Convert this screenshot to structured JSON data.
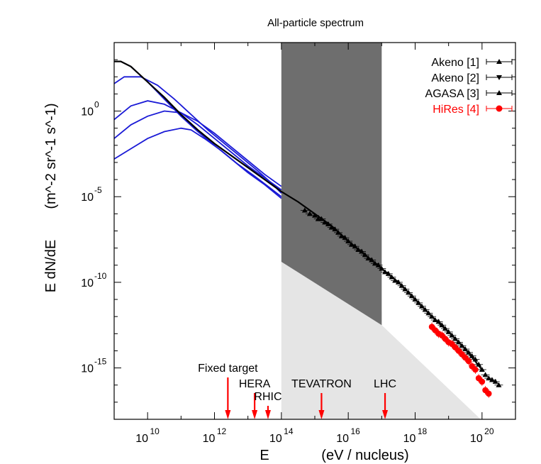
{
  "chart_data": {
    "type": "line",
    "title": "All-particle spectrum",
    "xlabel": {
      "main": "E",
      "units": "(eV / nucleus)"
    },
    "ylabel": {
      "main": "E dN/dE",
      "units_base": "m",
      "units_text": "(m^-2 sr^-1 s^-1)"
    },
    "xscale": "log",
    "yscale": "log",
    "xlim_log10": [
      9.0,
      21.0
    ],
    "ylim_log10": [
      -18.0,
      4.0
    ],
    "x_ticks": [
      {
        "exp": 10,
        "label": "10",
        "sup": "10"
      },
      {
        "exp": 12,
        "label": "10",
        "sup": "12"
      },
      {
        "exp": 14,
        "label": "10",
        "sup": "14"
      },
      {
        "exp": 16,
        "label": "10",
        "sup": "16"
      },
      {
        "exp": 18,
        "label": "10",
        "sup": "18"
      },
      {
        "exp": 20,
        "label": "10",
        "sup": "20"
      }
    ],
    "y_ticks": [
      {
        "exp": 0,
        "label": "10",
        "sup": "0"
      },
      {
        "exp": -5,
        "label": "10",
        "sup": "-5"
      },
      {
        "exp": -10,
        "label": "10",
        "sup": "-10"
      },
      {
        "exp": -15,
        "label": "10",
        "sup": "-15"
      }
    ],
    "total_curve": {
      "color": "#000000",
      "points_log10": [
        [
          9.0,
          2.9
        ],
        [
          9.2,
          2.9
        ],
        [
          9.5,
          2.6
        ],
        [
          10.0,
          1.7
        ],
        [
          10.5,
          0.8
        ],
        [
          11,
          -0.2
        ],
        [
          11.5,
          -1.1
        ],
        [
          12,
          -1.9
        ],
        [
          12.5,
          -2.6
        ],
        [
          13,
          -3.3
        ],
        [
          13.5,
          -4.0
        ],
        [
          14,
          -4.7
        ],
        [
          14.5,
          -5.3
        ],
        [
          15,
          -6.0
        ],
        [
          15.5,
          -6.7
        ],
        [
          16,
          -7.6
        ],
        [
          16.5,
          -8.4
        ],
        [
          17,
          -9.2
        ],
        [
          17.5,
          -10.0
        ],
        [
          18,
          -11.0
        ],
        [
          18.5,
          -12.0
        ],
        [
          19,
          -12.9
        ],
        [
          19.5,
          -13.9
        ],
        [
          20,
          -15.1
        ]
      ]
    },
    "component_curves": {
      "color": "#1a1ad6",
      "series": [
        {
          "points_log10": [
            [
              9.0,
              2.9
            ],
            [
              9.2,
              2.9
            ],
            [
              9.5,
              2.6
            ],
            [
              10,
              1.7
            ],
            [
              10.5,
              0.7
            ],
            [
              11,
              -0.3
            ],
            [
              11.5,
              -1.2
            ],
            [
              12,
              -2.0
            ],
            [
              12.5,
              -2.8
            ],
            [
              13,
              -3.6
            ],
            [
              13.5,
              -4.3
            ],
            [
              14,
              -5.1
            ]
          ]
        },
        {
          "points_log10": [
            [
              9.0,
              1.6
            ],
            [
              9.3,
              2.0
            ],
            [
              9.8,
              2.0
            ],
            [
              10.3,
              1.5
            ],
            [
              10.8,
              0.7
            ],
            [
              11.3,
              -0.2
            ],
            [
              11.8,
              -1.1
            ],
            [
              12.3,
              -1.9
            ],
            [
              12.8,
              -2.7
            ],
            [
              13.3,
              -3.5
            ],
            [
              13.7,
              -4.2
            ],
            [
              14,
              -4.8
            ]
          ]
        },
        {
          "points_log10": [
            [
              9.0,
              -0.5
            ],
            [
              9.5,
              0.3
            ],
            [
              10,
              0.6
            ],
            [
              10.5,
              0.4
            ],
            [
              11,
              -0.1
            ],
            [
              11.5,
              -0.8
            ],
            [
              12,
              -1.6
            ],
            [
              12.5,
              -2.4
            ],
            [
              13,
              -3.2
            ],
            [
              13.5,
              -3.9
            ],
            [
              14,
              -4.6
            ]
          ]
        },
        {
          "points_log10": [
            [
              9.0,
              -1.6
            ],
            [
              9.5,
              -0.8
            ],
            [
              10,
              -0.3
            ],
            [
              10.5,
              0.0
            ],
            [
              11,
              -0.1
            ],
            [
              11.5,
              -0.6
            ],
            [
              12,
              -1.3
            ],
            [
              12.5,
              -2.1
            ],
            [
              13,
              -2.9
            ],
            [
              13.5,
              -3.7
            ],
            [
              14,
              -4.4
            ]
          ]
        },
        {
          "points_log10": [
            [
              9.0,
              -2.8
            ],
            [
              9.5,
              -2.2
            ],
            [
              10,
              -1.6
            ],
            [
              10.5,
              -1.2
            ],
            [
              11,
              -1.0
            ],
            [
              11.3,
              -1.1
            ],
            [
              11.7,
              -1.6
            ],
            [
              12.2,
              -2.3
            ],
            [
              12.7,
              -3.1
            ],
            [
              13.2,
              -3.8
            ],
            [
              13.6,
              -4.4
            ],
            [
              14,
              -5.0
            ]
          ]
        }
      ]
    },
    "shaded_regions": [
      {
        "name": "dark-band",
        "color": "#6e6e6e",
        "x_log10": [
          14,
          17
        ],
        "top_log10": 4.0,
        "bottom_left_log10": -8.8,
        "bottom_right_log10": -12.5
      },
      {
        "name": "light-region",
        "color": "#e5e5e5",
        "polygon_log10": [
          [
            14,
            -8.8
          ],
          [
            17,
            -12.5
          ],
          [
            19.96,
            -18
          ],
          [
            14,
            -18
          ]
        ]
      }
    ],
    "legend": {
      "position": "top-right",
      "entries": [
        {
          "label": "Akeno [1]",
          "color": "#000000",
          "marker": "triangle-up"
        },
        {
          "label": "Akeno [2]",
          "color": "#000000",
          "marker": "triangle-down"
        },
        {
          "label": "AGASA [3]",
          "color": "#000000",
          "marker": "triangle-up"
        },
        {
          "label": "HiRes [4]",
          "color": "#ff0000",
          "marker": "circle"
        }
      ]
    },
    "data_points": {
      "black_triangles_log10": [
        [
          14.7,
          -5.8
        ],
        [
          14.85,
          -6.0
        ],
        [
          15.0,
          -6.1
        ],
        [
          15.1,
          -6.3
        ],
        [
          15.2,
          -6.3
        ],
        [
          15.3,
          -6.5
        ],
        [
          15.4,
          -6.6
        ],
        [
          15.5,
          -6.8
        ],
        [
          15.6,
          -6.9
        ],
        [
          15.7,
          -7.1
        ],
        [
          15.8,
          -7.3
        ],
        [
          15.9,
          -7.4
        ],
        [
          16.0,
          -7.6
        ],
        [
          16.1,
          -7.8
        ],
        [
          16.2,
          -7.9
        ],
        [
          16.3,
          -8.1
        ],
        [
          16.4,
          -8.2
        ],
        [
          16.5,
          -8.4
        ],
        [
          16.6,
          -8.6
        ],
        [
          16.7,
          -8.7
        ],
        [
          16.8,
          -8.9
        ],
        [
          16.9,
          -9.0
        ],
        [
          17.0,
          -9.2
        ],
        [
          17.1,
          -9.4
        ],
        [
          17.2,
          -9.5
        ],
        [
          17.3,
          -9.7
        ],
        [
          17.4,
          -9.9
        ],
        [
          17.5,
          -10.0
        ],
        [
          17.6,
          -10.2
        ],
        [
          17.7,
          -10.4
        ],
        [
          17.8,
          -10.6
        ],
        [
          17.9,
          -10.8
        ],
        [
          18.0,
          -11.0
        ],
        [
          18.1,
          -11.2
        ],
        [
          18.2,
          -11.4
        ],
        [
          18.3,
          -11.6
        ],
        [
          18.4,
          -11.8
        ],
        [
          18.5,
          -12.0
        ],
        [
          18.6,
          -12.2
        ],
        [
          18.7,
          -12.3
        ],
        [
          18.8,
          -12.5
        ],
        [
          18.9,
          -12.7
        ],
        [
          19.0,
          -12.9
        ],
        [
          19.1,
          -13.1
        ],
        [
          19.2,
          -13.3
        ],
        [
          19.3,
          -13.5
        ],
        [
          19.4,
          -13.7
        ],
        [
          19.5,
          -13.9
        ],
        [
          19.6,
          -14.1
        ],
        [
          19.7,
          -14.3
        ],
        [
          19.8,
          -14.5
        ],
        [
          19.9,
          -14.8
        ],
        [
          20.0,
          -15.1
        ],
        [
          20.1,
          -15.4
        ],
        [
          20.2,
          -15.6
        ],
        [
          20.3,
          -15.7
        ],
        [
          20.4,
          -15.8
        ],
        [
          20.5,
          -16.0
        ]
      ],
      "red_circles_log10": [
        [
          18.5,
          -12.6
        ],
        [
          18.6,
          -12.8
        ],
        [
          18.7,
          -13.0
        ],
        [
          18.8,
          -13.1
        ],
        [
          18.9,
          -13.3
        ],
        [
          19.0,
          -13.5
        ],
        [
          19.1,
          -13.6
        ],
        [
          19.2,
          -13.8
        ],
        [
          19.3,
          -14.0
        ],
        [
          19.4,
          -14.2
        ],
        [
          19.5,
          -14.4
        ],
        [
          19.6,
          -14.6
        ],
        [
          19.7,
          -14.9
        ],
        [
          19.8,
          -15.1
        ],
        [
          19.9,
          -15.6
        ],
        [
          20.0,
          -15.8
        ],
        [
          20.1,
          -16.3
        ],
        [
          20.2,
          -16.5
        ]
      ]
    },
    "accelerators": [
      {
        "label": "Fixed target",
        "x_log10": 12.4,
        "label_offset_y": -22
      },
      {
        "label": "HERA",
        "x_log10": 13.2,
        "label_offset_y": 0
      },
      {
        "label": "RHIC",
        "x_log10": 13.6,
        "label_offset_y": 18
      },
      {
        "label": "TEVATRON",
        "x_log10": 15.2,
        "label_offset_y": 0
      },
      {
        "label": "LHC",
        "x_log10": 17.1,
        "label_offset_y": 0
      }
    ],
    "colors": {
      "axis": "#000000",
      "arrow": "#ff0000",
      "hires": "#ff0000",
      "components": "#1a1ad6"
    }
  }
}
